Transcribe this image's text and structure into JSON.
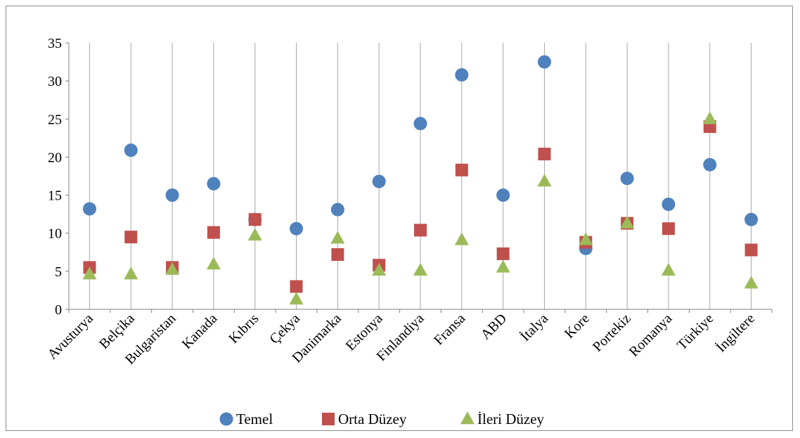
{
  "chart_data": {
    "type": "scatter",
    "title": "",
    "xlabel": "",
    "ylabel": "",
    "ylim": [
      0,
      35
    ],
    "yticks": [
      0,
      5,
      10,
      15,
      20,
      25,
      30,
      35
    ],
    "grid": "vertical",
    "legend_position": "bottom",
    "categories": [
      "Avusturya",
      "Belçika",
      "Bulgaristan",
      "Kanada",
      "Kıbrıs",
      "Çekya",
      "Danimarka",
      "Estonya",
      "Finlandiya",
      "Fransa",
      "ABD",
      "İtalya",
      "Kore",
      "Portekiz",
      "Romanya",
      "Türkiye",
      "İngiltere"
    ],
    "series": [
      {
        "name": "Temel",
        "marker": "circle",
        "color": "#4F81BD",
        "values": [
          13.2,
          20.9,
          15.0,
          16.5,
          11.8,
          10.6,
          13.1,
          16.8,
          24.4,
          30.8,
          15.0,
          32.5,
          8.0,
          17.2,
          13.8,
          19.0,
          11.8
        ]
      },
      {
        "name": "Orta Düzey",
        "marker": "square",
        "color": "#C0504D",
        "values": [
          5.5,
          9.5,
          5.5,
          10.1,
          11.8,
          3.0,
          7.2,
          5.8,
          10.4,
          18.3,
          7.3,
          20.4,
          8.8,
          11.3,
          10.6,
          24.0,
          7.8
        ]
      },
      {
        "name": "İleri Düzey",
        "marker": "triangle",
        "color": "#9BBB59",
        "values": [
          4.6,
          4.6,
          5.2,
          5.9,
          9.7,
          1.3,
          9.3,
          5.1,
          5.1,
          9.1,
          5.5,
          16.8,
          9.1,
          11.3,
          5.1,
          25.0,
          3.4
        ]
      }
    ]
  }
}
